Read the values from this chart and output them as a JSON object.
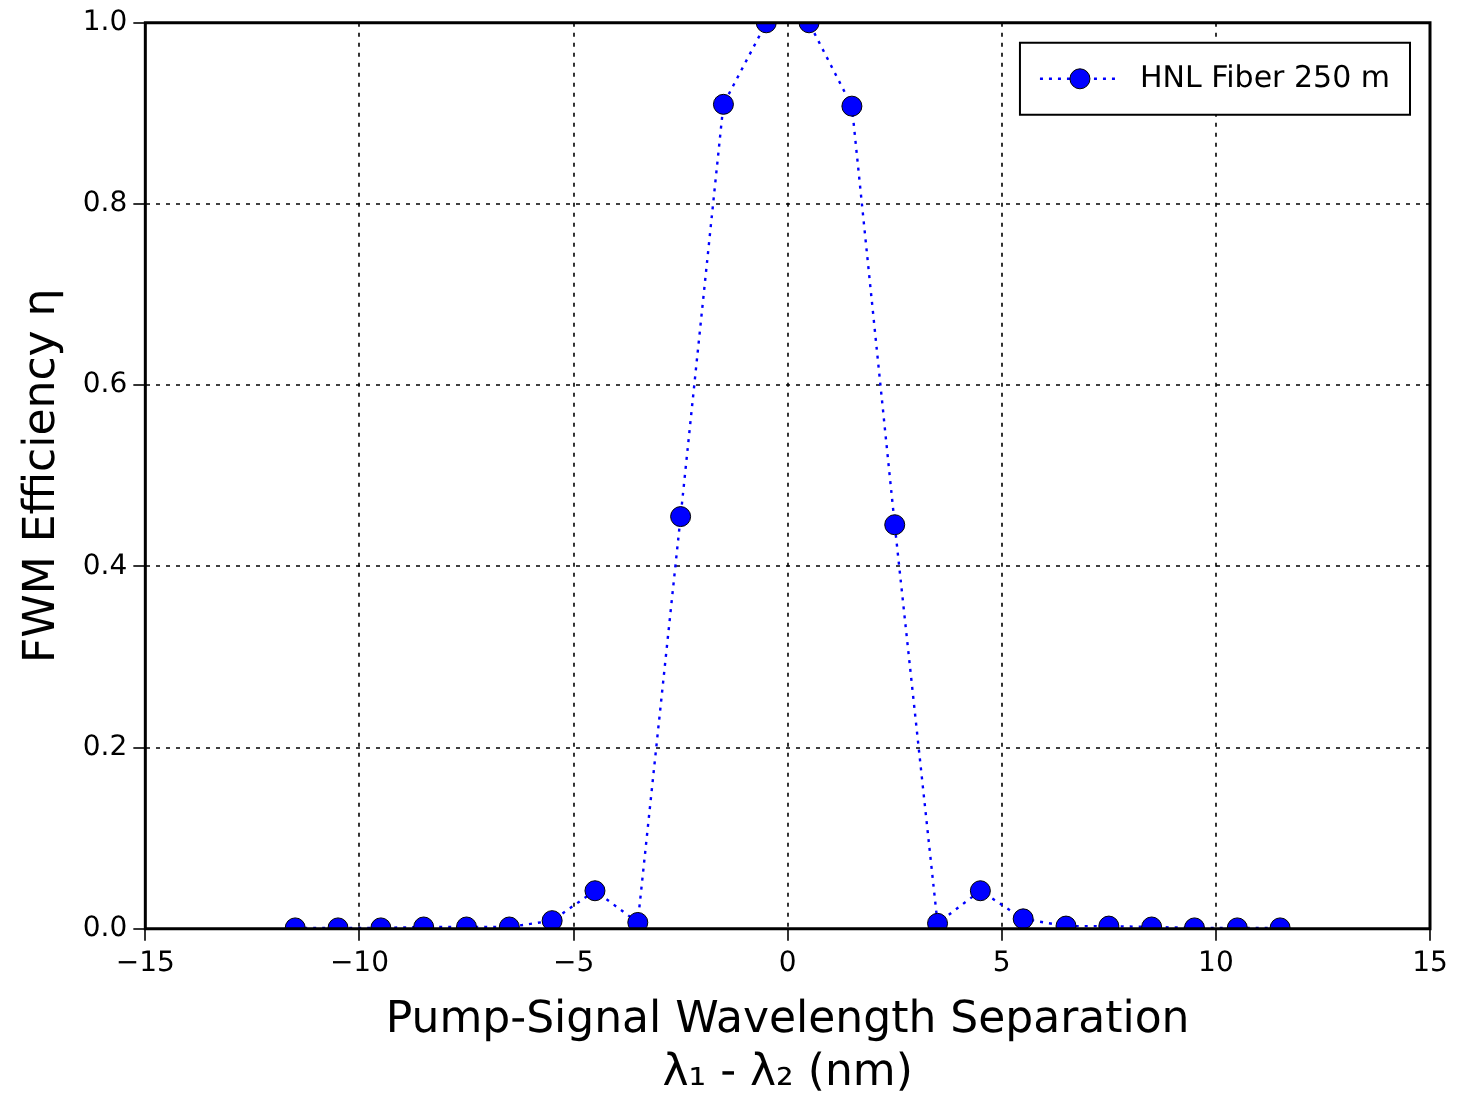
{
  "chart_data": {
    "type": "line",
    "xlabel": "Pump-Signal Wavelength Separation\nλ₁ - λ₂ (nm)",
    "ylabel": "FWM Efficiency η",
    "x": [
      -11.5,
      -10.5,
      -9.5,
      -8.5,
      -7.5,
      -6.5,
      -5.5,
      -4.5,
      -3.5,
      -2.5,
      -1.5,
      -0.5,
      0.5,
      1.5,
      2.5,
      3.5,
      4.5,
      5.5,
      6.5,
      7.5,
      8.5,
      9.5,
      10.5,
      11.5
    ],
    "series": [
      {
        "name": "HNL Fiber 250 m",
        "color": "#0000ff",
        "values": [
          0.001,
          0.001,
          0.001,
          0.002,
          0.002,
          0.002,
          0.009,
          0.042,
          0.007,
          0.455,
          0.91,
          1.0,
          1.0,
          0.908,
          0.446,
          0.006,
          0.042,
          0.011,
          0.003,
          0.003,
          0.002,
          0.001,
          0.001,
          0.001
        ]
      }
    ],
    "xlim": [
      -15,
      15
    ],
    "xticks": [
      -15,
      -10,
      -5,
      0,
      5,
      10,
      15
    ],
    "ylim": [
      0,
      1
    ],
    "yticks": [
      {
        "value": 0,
        "label": "0.0"
      },
      {
        "value": 0.2,
        "label": "0.2"
      },
      {
        "value": 0.4,
        "label": "0.4"
      },
      {
        "value": 0.6,
        "label": "0.6"
      },
      {
        "value": 0.8,
        "label": "0.8"
      },
      {
        "value": 1,
        "label": "1.0"
      }
    ],
    "grid": true,
    "legend": "top right",
    "marker": "circle",
    "line_style": "dotted"
  }
}
